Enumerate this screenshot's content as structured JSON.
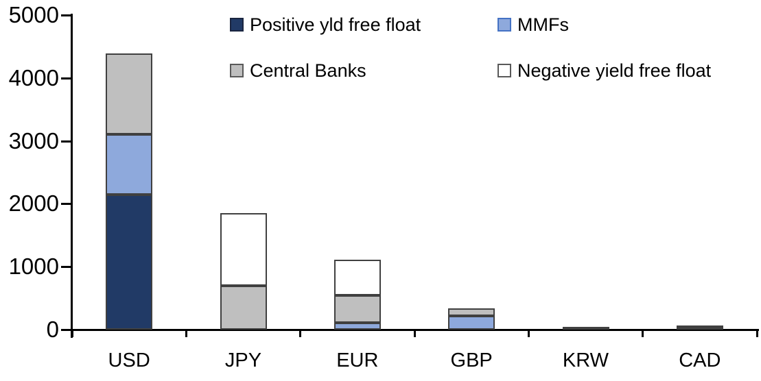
{
  "chart_data": {
    "type": "bar",
    "stacked": true,
    "title": "",
    "xlabel": "",
    "ylabel": "",
    "categories": [
      "USD",
      "JPY",
      "EUR",
      "GBP",
      "KRW",
      "CAD"
    ],
    "series": [
      {
        "name": "Positive yld free float",
        "color": "#213A66",
        "swatch_border": "#1a2540",
        "values": [
          2150,
          0,
          0,
          0,
          45,
          40
        ]
      },
      {
        "name": "MMFs",
        "color": "#8EA9DC",
        "swatch_border": "#4472C4",
        "values": [
          950,
          0,
          110,
          220,
          0,
          0
        ]
      },
      {
        "name": "Central Banks",
        "color": "#BFBFBF",
        "swatch_border": "#595959",
        "values": [
          1290,
          700,
          435,
          115,
          0,
          30
        ]
      },
      {
        "name": "Negative yield free float",
        "color": "#FFFFFF",
        "swatch_border": "#595959",
        "values": [
          0,
          1150,
          565,
          0,
          0,
          0
        ]
      }
    ],
    "totals": {
      "USD": 4390,
      "JPY": 1850,
      "EUR": 1110,
      "GBP": 335,
      "KRW": 45,
      "CAD": 70
    },
    "ylim": [
      0,
      5000
    ],
    "yticks": [
      0,
      1000,
      2000,
      3000,
      4000,
      5000
    ],
    "grid": false,
    "legend_position": "top",
    "axis_color": "#000000",
    "segment_border_color": "#404040",
    "background_color": "#FFFFFF"
  }
}
